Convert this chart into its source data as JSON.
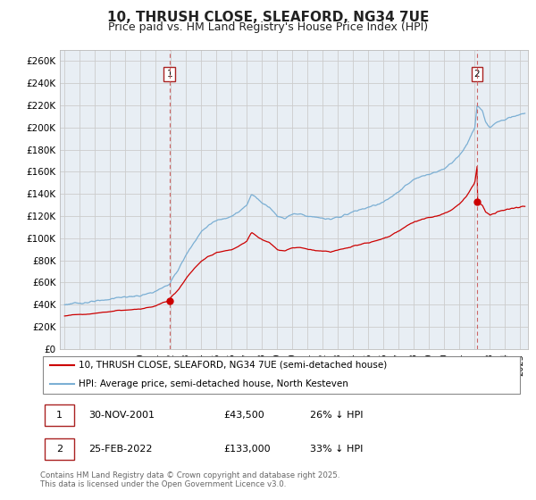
{
  "title": "10, THRUSH CLOSE, SLEAFORD, NG34 7UE",
  "subtitle": "Price paid vs. HM Land Registry's House Price Index (HPI)",
  "ylabel_ticks": [
    0,
    20000,
    40000,
    60000,
    80000,
    100000,
    120000,
    140000,
    160000,
    180000,
    200000,
    220000,
    240000,
    260000
  ],
  "ylim": [
    0,
    270000
  ],
  "xlim_start": 1994.7,
  "xlim_end": 2025.5,
  "point1_x": 2001.917,
  "point1_y": 43500,
  "point2_x": 2022.15,
  "point2_y": 133000,
  "line_color_red": "#cc0000",
  "line_color_blue": "#7bafd4",
  "vline_color": "#cc6666",
  "plot_bg_color": "#e8eef4",
  "legend_label_red": "10, THRUSH CLOSE, SLEAFORD, NG34 7UE (semi-detached house)",
  "legend_label_blue": "HPI: Average price, semi-detached house, North Kesteven",
  "annotation1_label": "1",
  "annotation1_date": "30-NOV-2001",
  "annotation1_price": "£43,500",
  "annotation1_hpi": "26% ↓ HPI",
  "annotation2_label": "2",
  "annotation2_date": "25-FEB-2022",
  "annotation2_price": "£133,000",
  "annotation2_hpi": "33% ↓ HPI",
  "footer": "Contains HM Land Registry data © Crown copyright and database right 2025.\nThis data is licensed under the Open Government Licence v3.0.",
  "bg_color": "#ffffff",
  "grid_color": "#cccccc",
  "title_fontsize": 11,
  "subtitle_fontsize": 9
}
